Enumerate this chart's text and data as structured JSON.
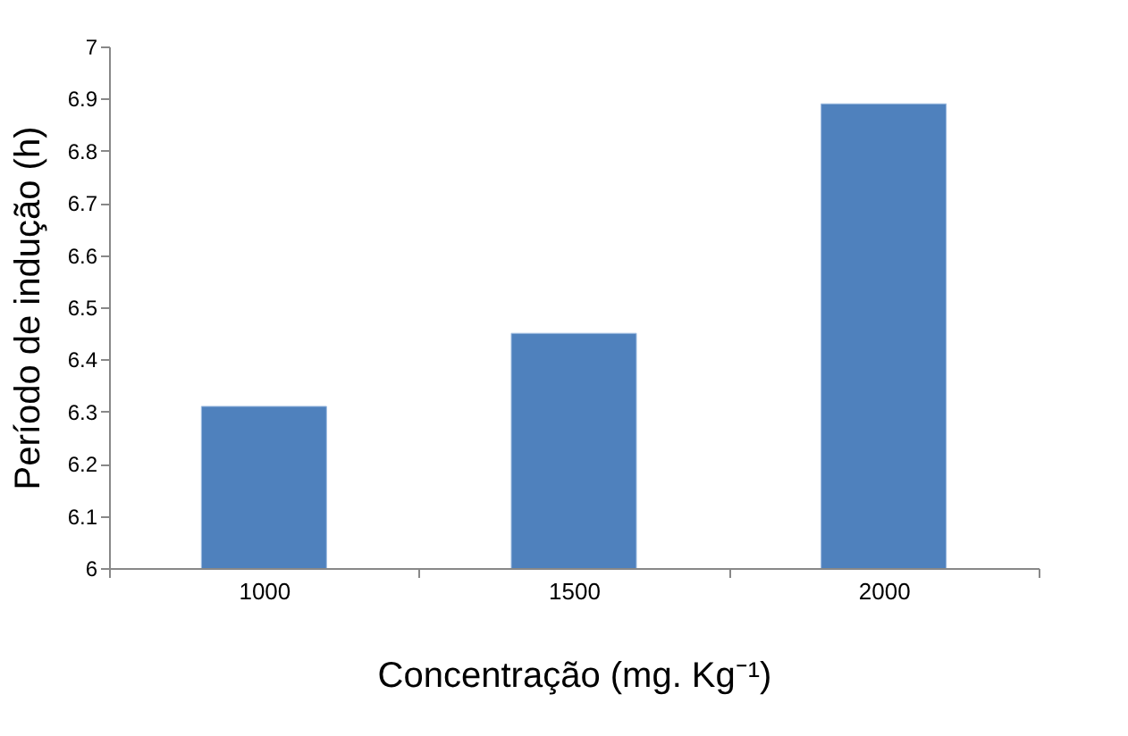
{
  "chart_data": {
    "type": "bar",
    "xlabel": "Concentração (mg. Kg⁻¹)",
    "ylabel": "Período de indução (h)",
    "categories": [
      "1000",
      "1500",
      "2000"
    ],
    "values": [
      6.31,
      6.45,
      6.89
    ],
    "color": "#4f81bd",
    "ylim": [
      6,
      7
    ],
    "yticks": [
      6,
      6.1,
      6.2,
      6.3,
      6.4,
      6.5,
      6.6,
      6.7,
      6.8,
      6.9,
      7
    ],
    "grid": false
  }
}
